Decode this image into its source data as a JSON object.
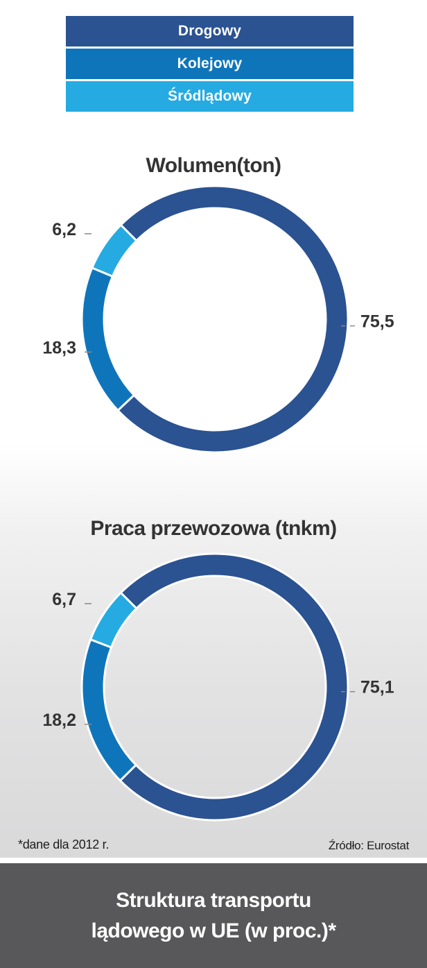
{
  "legend": [
    {
      "label": "Drogowy",
      "color": "#2b5291"
    },
    {
      "label": "Kolejowy",
      "color": "#0f75bb"
    },
    {
      "label": "Śródlądowy",
      "color": "#25abe2"
    }
  ],
  "chart_data": [
    {
      "type": "pie",
      "title": "Wolumen(ton)",
      "categories": [
        "Drogowy",
        "Kolejowy",
        "Śródlądowy"
      ],
      "values": [
        75.5,
        18.3,
        6.2
      ],
      "value_labels": [
        "75,5",
        "18,3",
        "6,2"
      ],
      "colors": [
        "#2b5291",
        "#0f75bb",
        "#25abe2"
      ]
    },
    {
      "type": "pie",
      "title": "Praca przewozowa (tnkm)",
      "categories": [
        "Drogowy",
        "Kolejowy",
        "Śródlądowy"
      ],
      "values": [
        75.1,
        18.2,
        6.7
      ],
      "value_labels": [
        "75,1",
        "18,2",
        "6,7"
      ],
      "colors": [
        "#2b5291",
        "#0f75bb",
        "#25abe2"
      ]
    }
  ],
  "footnote": {
    "note": "*dane dla 2012 r.",
    "source": "Źródło: Eurostat"
  },
  "footer": {
    "line1": "Struktura transportu",
    "line2": "lądowego w UE (w proc.)*"
  }
}
